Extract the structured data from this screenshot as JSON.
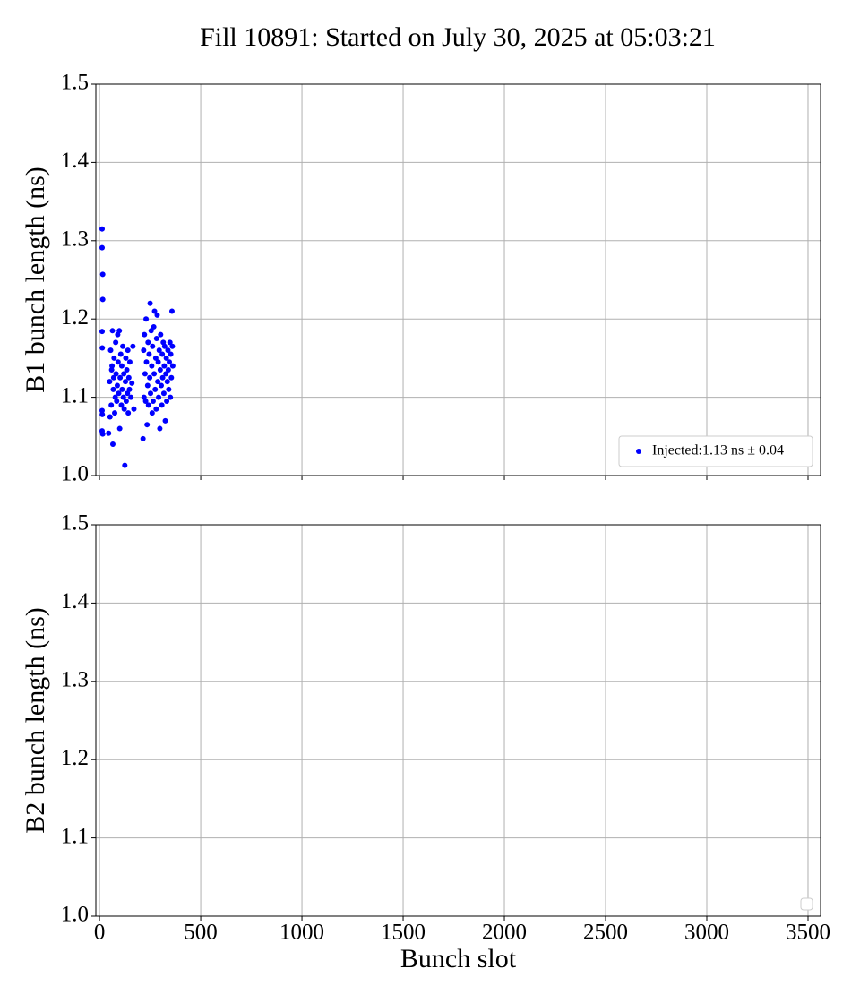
{
  "chart_data": [
    {
      "type": "scatter",
      "title": "Fill 10891: Started on July 30, 2025 at 05:03:21",
      "ylabel": "B1 bunch length (ns)",
      "xlim": [
        -18,
        3562
      ],
      "ylim": [
        1.0,
        1.5
      ],
      "xticks": [
        0,
        500,
        1000,
        1500,
        2000,
        2500,
        3000,
        3500
      ],
      "yticks": [
        {
          "value": 1.0,
          "label": "1.0"
        },
        1.1,
        1.2,
        1.3,
        1.4,
        1.5
      ],
      "grid": true,
      "legend": "lower right",
      "series": [
        {
          "name": "Injected:1.13 ns ± 0.04",
          "color": "#0000ff",
          "x": [
            13,
            13,
            16,
            16,
            13,
            14,
            13,
            14,
            13,
            16,
            45,
            50,
            52,
            55,
            58,
            60,
            62,
            64,
            66,
            68,
            70,
            72,
            75,
            78,
            80,
            82,
            85,
            88,
            90,
            92,
            95,
            98,
            100,
            102,
            105,
            108,
            110,
            112,
            115,
            118,
            120,
            122,
            125,
            128,
            130,
            132,
            135,
            138,
            140,
            142,
            145,
            148,
            150,
            155,
            160,
            165,
            170,
            215,
            218,
            220,
            222,
            225,
            228,
            230,
            232,
            235,
            238,
            240,
            242,
            245,
            248,
            250,
            252,
            255,
            258,
            260,
            262,
            265,
            268,
            270,
            272,
            275,
            278,
            280,
            282,
            285,
            288,
            290,
            292,
            295,
            298,
            300,
            302,
            305,
            308,
            310,
            312,
            315,
            318,
            320,
            322,
            325,
            328,
            330,
            332,
            335,
            338,
            340,
            342,
            345,
            348,
            350,
            352,
            355,
            358,
            360,
            362
          ],
          "values": [
            1.315,
            1.291,
            1.257,
            1.225,
            1.184,
            1.163,
            1.083,
            1.078,
            1.057,
            1.053,
            1.054,
            1.12,
            1.075,
            1.16,
            1.09,
            1.135,
            1.14,
            1.185,
            1.04,
            1.11,
            1.125,
            1.15,
            1.08,
            1.1,
            1.17,
            1.13,
            1.095,
            1.115,
            1.18,
            1.145,
            1.105,
            1.185,
            1.06,
            1.125,
            1.155,
            1.09,
            1.14,
            1.11,
            1.165,
            1.1,
            1.13,
            1.085,
            1.013,
            1.12,
            1.15,
            1.095,
            1.135,
            1.105,
            1.16,
            1.08,
            1.125,
            1.11,
            1.145,
            1.1,
            1.118,
            1.165,
            1.085,
            1.047,
            1.16,
            1.1,
            1.18,
            1.13,
            1.095,
            1.2,
            1.145,
            1.065,
            1.115,
            1.17,
            1.09,
            1.155,
            1.125,
            1.22,
            1.105,
            1.185,
            1.14,
            1.08,
            1.165,
            1.095,
            1.19,
            1.13,
            1.21,
            1.11,
            1.15,
            1.085,
            1.175,
            1.205,
            1.12,
            1.145,
            1.1,
            1.16,
            1.06,
            1.135,
            1.18,
            1.115,
            1.09,
            1.155,
            1.125,
            1.17,
            1.105,
            1.14,
            1.165,
            1.07,
            1.13,
            1.15,
            1.095,
            1.12,
            1.16,
            1.135,
            1.11,
            1.145,
            1.17,
            1.1,
            1.155,
            1.125,
            1.21,
            1.165,
            1.14
          ]
        }
      ]
    },
    {
      "type": "scatter",
      "xlabel": "Bunch slot",
      "ylabel": "B2 bunch length (ns)",
      "xlim": [
        -18,
        3562
      ],
      "ylim": [
        1.0,
        1.5
      ],
      "xticks": [
        0,
        500,
        1000,
        1500,
        2000,
        2500,
        3000,
        3500
      ],
      "yticks": [
        {
          "value": 1.0,
          "label": "1.0"
        },
        1.1,
        1.2,
        1.3,
        1.4,
        1.5
      ],
      "grid": true,
      "legend": "lower right",
      "series": []
    }
  ]
}
